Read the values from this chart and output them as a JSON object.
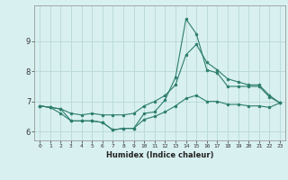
{
  "xlabel": "Humidex (Indice chaleur)",
  "ylabel": "",
  "x": [
    0,
    1,
    2,
    3,
    4,
    5,
    6,
    7,
    8,
    9,
    10,
    11,
    12,
    13,
    14,
    15,
    16,
    17,
    18,
    19,
    20,
    21,
    22,
    23
  ],
  "y_main": [
    6.85,
    6.8,
    6.75,
    6.35,
    6.35,
    6.35,
    6.3,
    6.05,
    6.1,
    6.1,
    6.6,
    6.65,
    7.05,
    7.8,
    9.75,
    9.25,
    8.05,
    7.95,
    7.5,
    7.5,
    7.5,
    7.5,
    7.15,
    6.95
  ],
  "y_upper": [
    6.85,
    6.8,
    6.75,
    6.6,
    6.55,
    6.6,
    6.55,
    6.55,
    6.55,
    6.6,
    6.85,
    7.0,
    7.2,
    7.55,
    8.55,
    8.9,
    8.3,
    8.05,
    7.75,
    7.65,
    7.55,
    7.55,
    7.2,
    6.95
  ],
  "y_lower": [
    6.85,
    6.8,
    6.6,
    6.35,
    6.35,
    6.35,
    6.3,
    6.05,
    6.1,
    6.1,
    6.4,
    6.5,
    6.65,
    6.85,
    7.1,
    7.2,
    7.0,
    7.0,
    6.9,
    6.9,
    6.85,
    6.85,
    6.8,
    6.95
  ],
  "color": "#2d7d6e",
  "bg_color": "#d8f0f0",
  "grid_color": "#b8d8d8",
  "ylim": [
    5.7,
    10.2
  ],
  "xlim": [
    -0.5,
    23.5
  ],
  "yticks": [
    6,
    7,
    8,
    9
  ],
  "xticks": [
    0,
    1,
    2,
    3,
    4,
    5,
    6,
    7,
    8,
    9,
    10,
    11,
    12,
    13,
    14,
    15,
    16,
    17,
    18,
    19,
    20,
    21,
    22,
    23
  ]
}
